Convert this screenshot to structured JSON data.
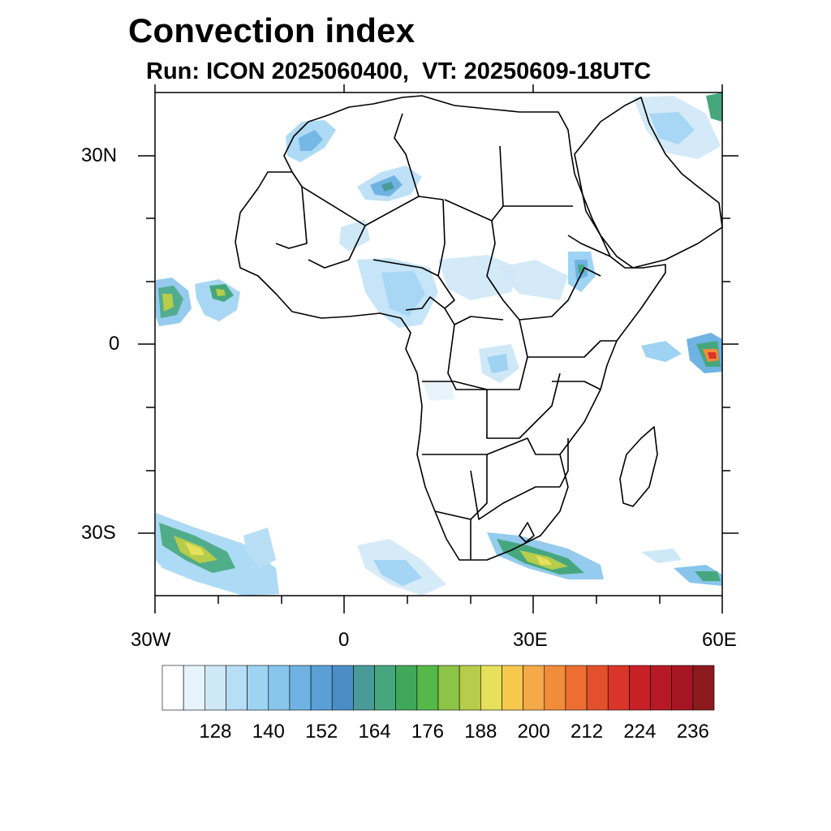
{
  "title": "Convection index",
  "subtitle": "Run: ICON 2025060400,  VT: 20250609-18UTC",
  "map": {
    "region": "Africa",
    "lon_range": [
      -30,
      60
    ],
    "lat_range": [
      -40,
      40
    ],
    "lat_labels": [
      "30N",
      "0",
      "30S"
    ],
    "lon_labels": [
      "30W",
      "0",
      "30E",
      "60E"
    ]
  },
  "colorbar": {
    "labels": [
      "128",
      "140",
      "152",
      "164",
      "176",
      "188",
      "200",
      "212",
      "224",
      "236"
    ],
    "colors": [
      "#ffffff",
      "#e8f4fb",
      "#cfe8f7",
      "#b8def6",
      "#9fd3f3",
      "#88c5ec",
      "#6fb3e3",
      "#5a9fd6",
      "#4a8ec5",
      "#4a9a9a",
      "#46a77e",
      "#3fa85a",
      "#55b94a",
      "#8cc447",
      "#b7cc4a",
      "#e6e05a",
      "#f6c84e",
      "#f5a94a",
      "#f08d3a",
      "#ec6e30",
      "#e2512a",
      "#d9352a",
      "#c82027",
      "#b71a26",
      "#a51622",
      "#8c1a1c"
    ]
  }
}
